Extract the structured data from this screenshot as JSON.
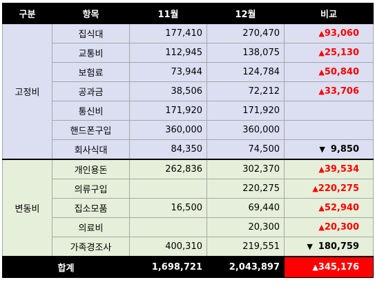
{
  "header": {
    "category": "구분",
    "item": "항목",
    "nov": "11월",
    "dec": "12월",
    "compare": "비교"
  },
  "groups": [
    {
      "label": "고정비",
      "rows": [
        {
          "item": "집식대",
          "nov": "177,410",
          "dec": "270,470",
          "arrow": "▲",
          "diff": "93,060",
          "dir": "up"
        },
        {
          "item": "교통비",
          "nov": "112,945",
          "dec": "138,075",
          "arrow": "▲",
          "diff": "25,130",
          "dir": "up"
        },
        {
          "item": "보험료",
          "nov": "73,944",
          "dec": "124,784",
          "arrow": "▲",
          "diff": "50,840",
          "dir": "up"
        },
        {
          "item": "공과금",
          "nov": "38,506",
          "dec": "72,212",
          "arrow": "▲",
          "diff": "33,706",
          "dir": "up"
        },
        {
          "item": "통신비",
          "nov": "171,920",
          "dec": "171,920",
          "arrow": "",
          "diff": "",
          "dir": ""
        },
        {
          "item": "핸드폰구입",
          "nov": "360,000",
          "dec": "360,000",
          "arrow": "",
          "diff": "",
          "dir": ""
        },
        {
          "item": "회사식대",
          "nov": "84,350",
          "dec": "74,500",
          "arrow": "▼",
          "diff": "9,850",
          "dir": "down"
        }
      ]
    },
    {
      "label": "변동비",
      "rows": [
        {
          "item": "개인용돈",
          "nov": "262,836",
          "dec": "302,370",
          "arrow": "▲",
          "diff": "39,534",
          "dir": "up"
        },
        {
          "item": "의류구입",
          "nov": "",
          "dec": "220,275",
          "arrow": "▲",
          "diff": "220,275",
          "dir": "up"
        },
        {
          "item": "집소모품",
          "nov": "16,500",
          "dec": "69,440",
          "arrow": "▲",
          "diff": "52,940",
          "dir": "up"
        },
        {
          "item": "의료비",
          "nov": "",
          "dec": "20,300",
          "arrow": "▲",
          "diff": "20,300",
          "dir": "up"
        },
        {
          "item": "가족경조사",
          "nov": "400,310",
          "dec": "219,551",
          "arrow": "▼",
          "diff": "180,759",
          "dir": "down"
        }
      ]
    }
  ],
  "total": {
    "label": "합계",
    "nov": "1,698,721",
    "dec": "2,043,897",
    "arrow": "▲",
    "diff": "345,176"
  },
  "colors": {
    "header_bg": "#000000",
    "fixed_bg": "#dcdff2",
    "variable_bg": "#e6efd9",
    "increase": "#ff0000",
    "decrease": "#000000",
    "total_compare_bg": "#ff0000"
  }
}
